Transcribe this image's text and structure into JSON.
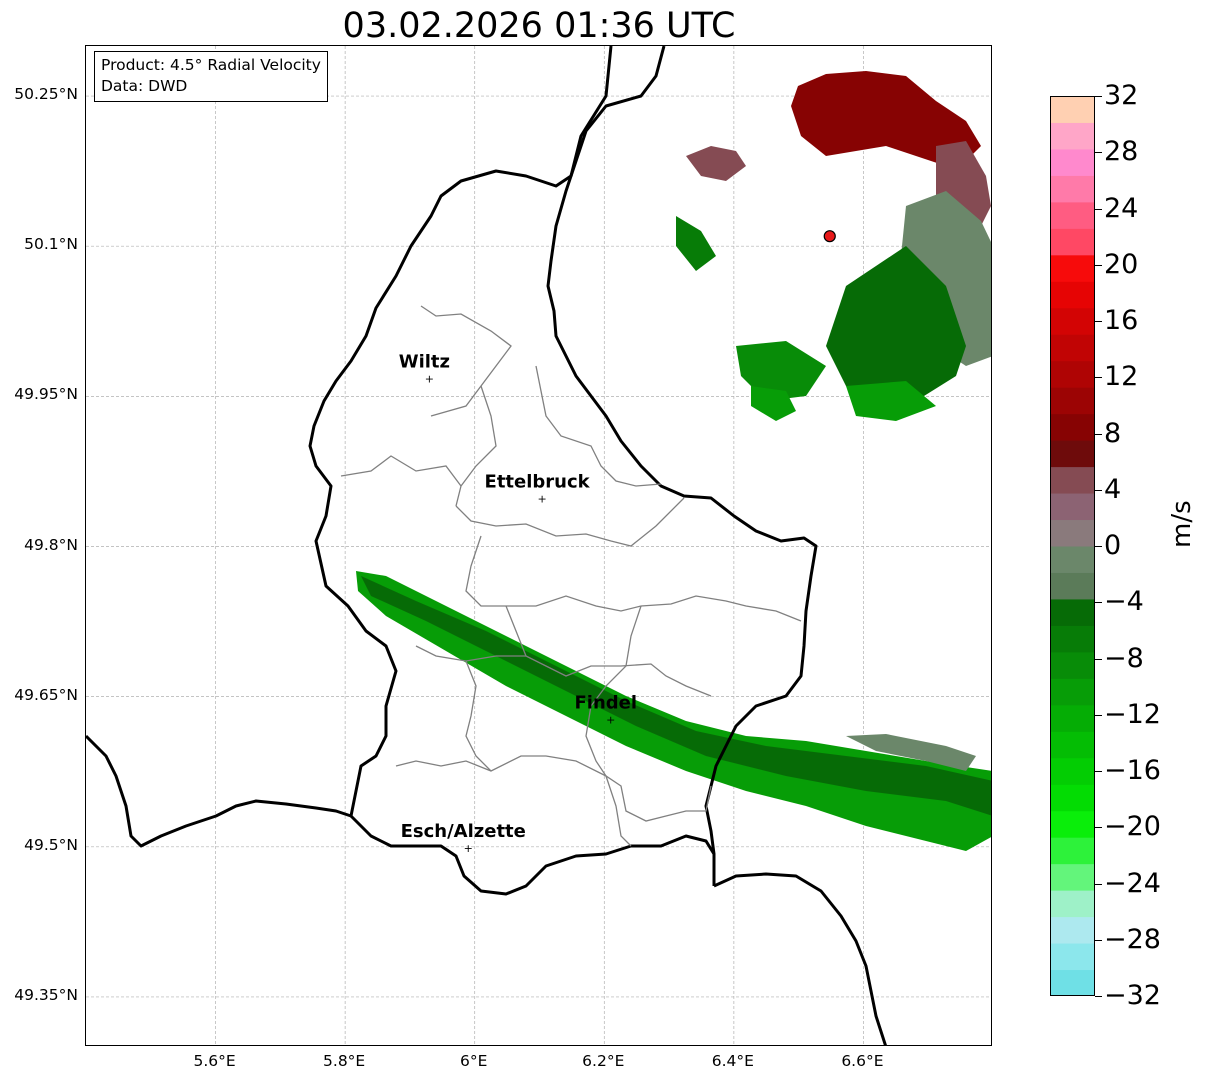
{
  "title": "03.02.2026 01:36 UTC",
  "info": {
    "product": "Product: 4.5° Radial Velocity",
    "data": "Data: DWD"
  },
  "map": {
    "lon_range": [
      5.4,
      6.8
    ],
    "lat_range": [
      49.3,
      50.3
    ],
    "lat_ticks": [
      {
        "value": 50.25,
        "label": "50.25°N"
      },
      {
        "value": 50.1,
        "label": "50.1°N"
      },
      {
        "value": 49.95,
        "label": "49.95°N"
      },
      {
        "value": 49.8,
        "label": "49.8°N"
      },
      {
        "value": 49.65,
        "label": "49.65°N"
      },
      {
        "value": 49.5,
        "label": "49.5°N"
      },
      {
        "value": 49.35,
        "label": "49.35°N"
      }
    ],
    "lon_ticks": [
      {
        "value": 5.6,
        "label": "5.6°E"
      },
      {
        "value": 5.8,
        "label": "5.8°E"
      },
      {
        "value": 6.0,
        "label": "6°E"
      },
      {
        "value": 6.2,
        "label": "6.2°E"
      },
      {
        "value": 6.4,
        "label": "6.4°E"
      },
      {
        "value": 6.6,
        "label": "6.6°E"
      }
    ],
    "cities": [
      {
        "name": "Wiltz",
        "lon": 5.93,
        "lat": 49.968
      },
      {
        "name": "Ettelbruck",
        "lon": 6.104,
        "lat": 49.848
      },
      {
        "name": "Findel",
        "lon": 6.21,
        "lat": 49.627
      },
      {
        "name": "Esch/Alzette",
        "lon": 5.99,
        "lat": 49.499
      }
    ],
    "radar_site": {
      "lon": 6.548,
      "lat": 50.11,
      "color": "#e8191a"
    }
  },
  "colorbar": {
    "unit": "m/s",
    "min": -32,
    "max": 32,
    "tick_labels": [
      "32",
      "28",
      "24",
      "20",
      "16",
      "12",
      "8",
      "4",
      "0",
      "−4",
      "−8",
      "−12",
      "−16",
      "−20",
      "−24",
      "−28",
      "−32"
    ],
    "colors": [
      "#6fe0e6",
      "#8ce7ec",
      "#ade9ef",
      "#9ef1c8",
      "#63f57b",
      "#2df23a",
      "#0aee0a",
      "#03dc03",
      "#03cd03",
      "#04bd04",
      "#05ad05",
      "#079d07",
      "#088c08",
      "#077c07",
      "#066b06",
      "#5b7b59",
      "#6b876a",
      "#8a7a7c",
      "#8c6373",
      "#854b53",
      "#6e0b0b",
      "#870303",
      "#9c0404",
      "#af0404",
      "#c10404",
      "#d30404",
      "#e60404",
      "#f70b0b",
      "#ff4864",
      "#ff5c82",
      "#ff7aa9",
      "#ff89cd",
      "#ffa6c8",
      "#ffd0b2"
    ]
  }
}
